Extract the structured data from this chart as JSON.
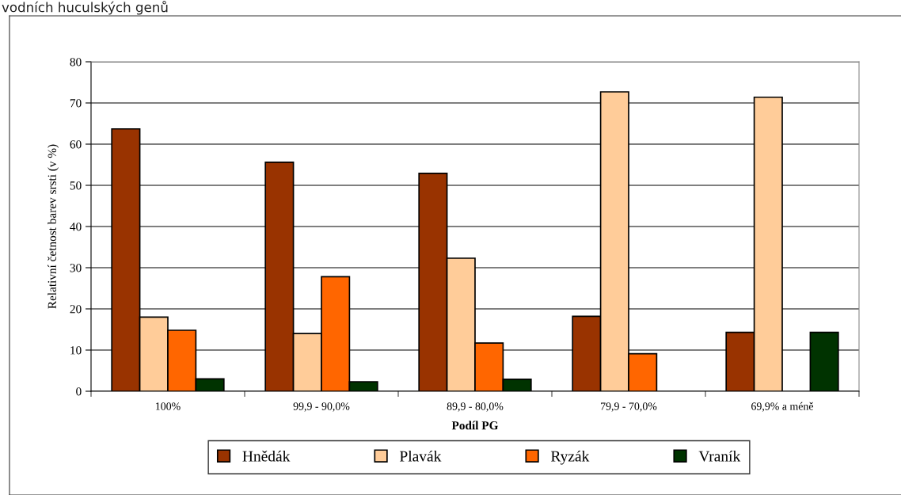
{
  "chart_data": {
    "type": "bar",
    "annotations": [
      "vodních huculských genů"
    ],
    "categories": [
      "100%",
      "99,9 - 90,0%",
      "89,9 - 80,0%",
      "79,9 - 70,0%",
      "69,9% a méně"
    ],
    "xlabel": "Podíl PG",
    "ylabel": "Relativní četnost barev srsti (v %)",
    "series": [
      {
        "name": "Hnědák",
        "color": "#993300",
        "values": [
          63.7,
          55.6,
          52.9,
          18.2,
          14.3
        ]
      },
      {
        "name": "Plavák",
        "color": "#ffcc99",
        "values": [
          18.0,
          14.0,
          32.3,
          72.7,
          71.4
        ]
      },
      {
        "name": "Ryzák",
        "color": "#ff6600",
        "values": [
          14.8,
          27.8,
          11.7,
          9.1,
          null
        ]
      },
      {
        "name": "Vraník",
        "color": "#003300",
        "values": [
          3.0,
          2.3,
          2.9,
          null,
          14.3
        ]
      }
    ],
    "ylim": [
      0,
      80
    ],
    "yticks": [
      0,
      10,
      20,
      30,
      40,
      50,
      60,
      70,
      80
    ],
    "grid": "y",
    "legend": "bottom"
  }
}
